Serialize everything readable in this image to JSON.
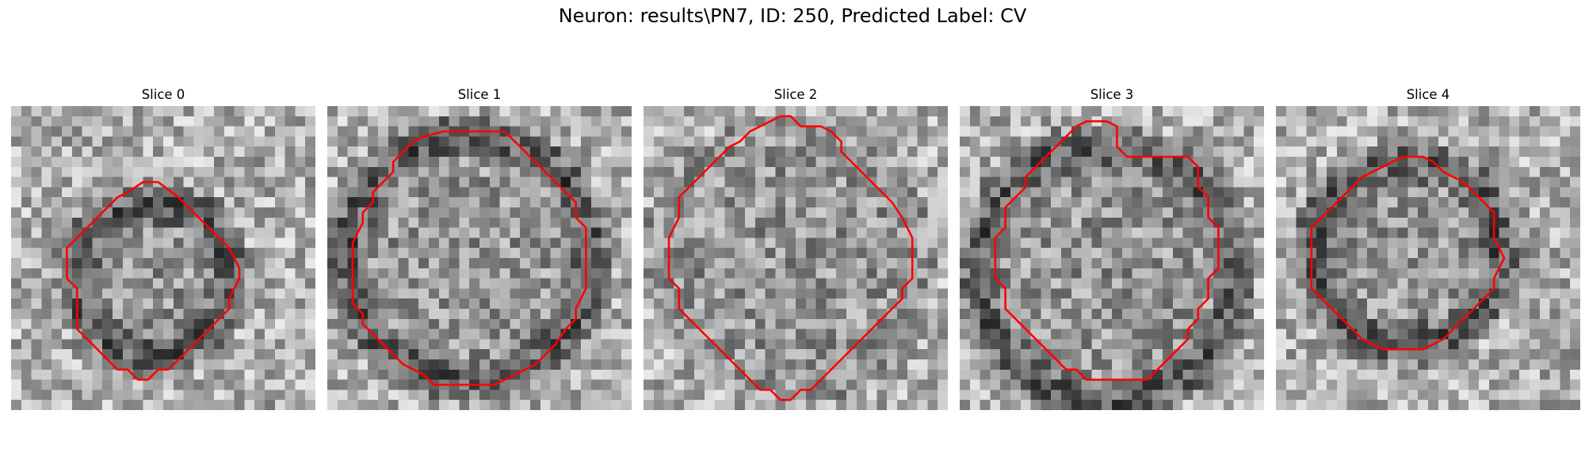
{
  "figure": {
    "title": "Neuron: results\\PN7, ID: 250, Predicted Label: CV"
  },
  "colors": {
    "contour": "#ff0000",
    "background": "#ffffff"
  },
  "panels": [
    {
      "title": "Slice 0",
      "contour": [
        [
          13,
          7.5
        ],
        [
          14.5,
          7.5
        ],
        [
          16.5,
          9
        ],
        [
          17.5,
          10
        ],
        [
          18.5,
          11
        ],
        [
          19.5,
          12
        ],
        [
          20.5,
          13
        ],
        [
          21.5,
          14
        ],
        [
          22,
          15
        ],
        [
          22.5,
          16
        ],
        [
          22.5,
          17
        ],
        [
          22,
          18
        ],
        [
          21.5,
          19
        ],
        [
          21.5,
          20
        ],
        [
          20.5,
          21
        ],
        [
          19.5,
          22
        ],
        [
          18.5,
          23
        ],
        [
          17.5,
          24
        ],
        [
          16.5,
          25
        ],
        [
          15.5,
          26
        ],
        [
          14.5,
          26
        ],
        [
          13.5,
          27
        ],
        [
          12.5,
          27
        ],
        [
          11.5,
          26
        ],
        [
          10.5,
          26
        ],
        [
          9.5,
          25
        ],
        [
          8.5,
          24
        ],
        [
          7.5,
          23
        ],
        [
          6.5,
          22
        ],
        [
          6.5,
          20
        ],
        [
          6.5,
          18
        ],
        [
          5.5,
          17
        ],
        [
          5.5,
          16
        ],
        [
          5.5,
          14
        ],
        [
          6.5,
          13
        ],
        [
          7.5,
          12
        ],
        [
          8.5,
          11
        ],
        [
          9.5,
          10
        ],
        [
          10.5,
          9
        ],
        [
          11.5,
          8.5
        ]
      ],
      "center": [
        14,
        17
      ],
      "radius": 7.5,
      "dark_ring": true
    },
    {
      "title": "Slice 1",
      "contour": [
        [
          9.5,
          3
        ],
        [
          11.5,
          2.5
        ],
        [
          13.5,
          2.5
        ],
        [
          15.5,
          2.5
        ],
        [
          17.5,
          2.5
        ],
        [
          18.5,
          3.5
        ],
        [
          19.5,
          4.5
        ],
        [
          20.5,
          5.5
        ],
        [
          21.5,
          6.5
        ],
        [
          22.5,
          7.5
        ],
        [
          23.5,
          8.5
        ],
        [
          24.5,
          9.5
        ],
        [
          24.5,
          11
        ],
        [
          25.5,
          12
        ],
        [
          25.5,
          14
        ],
        [
          25.5,
          16
        ],
        [
          25.5,
          18
        ],
        [
          24.5,
          20
        ],
        [
          24.5,
          21
        ],
        [
          23.5,
          22
        ],
        [
          22.5,
          23.5
        ],
        [
          21.5,
          24.5
        ],
        [
          20.5,
          25.5
        ],
        [
          18.5,
          26.5
        ],
        [
          16.5,
          27.5
        ],
        [
          14.5,
          27.5
        ],
        [
          12.5,
          27.5
        ],
        [
          10.5,
          27.5
        ],
        [
          9.5,
          26.5
        ],
        [
          7.5,
          25.5
        ],
        [
          6.5,
          24.5
        ],
        [
          5.5,
          23.5
        ],
        [
          4.5,
          22.5
        ],
        [
          3.5,
          21.5
        ],
        [
          3.5,
          20.5
        ],
        [
          2.5,
          19.5
        ],
        [
          2.5,
          17.5
        ],
        [
          2.5,
          15.5
        ],
        [
          2.5,
          13.5
        ],
        [
          3.5,
          11.5
        ],
        [
          3.5,
          10.5
        ],
        [
          4.5,
          9.5
        ],
        [
          4.5,
          8.5
        ],
        [
          5.5,
          7.5
        ],
        [
          6.5,
          6.5
        ],
        [
          6.5,
          5.5
        ],
        [
          7.5,
          4.5
        ],
        [
          8.5,
          3.5
        ]
      ],
      "center": [
        14,
        15
      ],
      "radius": 12,
      "dark_ring": true
    },
    {
      "title": "Slice 2",
      "contour": [
        [
          12.5,
          1.5
        ],
        [
          13.5,
          1
        ],
        [
          14.5,
          1
        ],
        [
          15.5,
          2
        ],
        [
          17.5,
          2
        ],
        [
          18.5,
          2.5
        ],
        [
          19.5,
          3.5
        ],
        [
          19.5,
          4.5
        ],
        [
          20.5,
          5.5
        ],
        [
          21.5,
          6.5
        ],
        [
          22.5,
          7.5
        ],
        [
          23.5,
          8.5
        ],
        [
          24.5,
          9.5
        ],
        [
          25.5,
          11
        ],
        [
          26.5,
          13
        ],
        [
          26.5,
          15
        ],
        [
          26.5,
          17
        ],
        [
          25.5,
          18
        ],
        [
          25.5,
          19
        ],
        [
          24.5,
          20
        ],
        [
          23.5,
          21
        ],
        [
          22.5,
          22
        ],
        [
          21.5,
          23
        ],
        [
          20.5,
          24
        ],
        [
          19.5,
          25
        ],
        [
          18.5,
          26
        ],
        [
          17.5,
          27
        ],
        [
          16.5,
          28
        ],
        [
          15.5,
          28
        ],
        [
          14.5,
          29
        ],
        [
          13.5,
          29
        ],
        [
          12.5,
          28
        ],
        [
          11.5,
          28
        ],
        [
          10.5,
          27
        ],
        [
          9.5,
          26
        ],
        [
          8.5,
          25
        ],
        [
          7.5,
          24
        ],
        [
          6.5,
          23
        ],
        [
          5.5,
          22
        ],
        [
          4.5,
          21
        ],
        [
          3.5,
          20
        ],
        [
          3.5,
          18
        ],
        [
          2.5,
          17
        ],
        [
          2.5,
          15
        ],
        [
          2.5,
          13
        ],
        [
          3.5,
          11
        ],
        [
          3.5,
          9
        ],
        [
          4.5,
          8
        ],
        [
          5.5,
          7
        ],
        [
          6.5,
          6
        ],
        [
          7.5,
          5
        ],
        [
          8.5,
          4
        ],
        [
          9.5,
          3.5
        ],
        [
          10.5,
          2.5
        ],
        [
          11.5,
          2
        ]
      ],
      "center": [
        14.5,
        15
      ],
      "radius": 12,
      "dark_ring": false
    },
    {
      "title": "Slice 3",
      "contour": [
        [
          11.5,
          2
        ],
        [
          12.5,
          1.5
        ],
        [
          14.5,
          1.5
        ],
        [
          15.5,
          2
        ],
        [
          15.5,
          4
        ],
        [
          16.5,
          5
        ],
        [
          18.5,
          5
        ],
        [
          20.5,
          5
        ],
        [
          22.5,
          5
        ],
        [
          23.5,
          6
        ],
        [
          23.5,
          8
        ],
        [
          24.5,
          9
        ],
        [
          24.5,
          11
        ],
        [
          25.5,
          12
        ],
        [
          25.5,
          14
        ],
        [
          25.5,
          16
        ],
        [
          24.5,
          17
        ],
        [
          24.5,
          19
        ],
        [
          23.5,
          20
        ],
        [
          23.5,
          21
        ],
        [
          22.5,
          22
        ],
        [
          22.5,
          23
        ],
        [
          21.5,
          24
        ],
        [
          20.5,
          25
        ],
        [
          19.5,
          26
        ],
        [
          18.5,
          27
        ],
        [
          16.5,
          27
        ],
        [
          14.5,
          27
        ],
        [
          12.5,
          27
        ],
        [
          11.5,
          26
        ],
        [
          10.5,
          26
        ],
        [
          9.5,
          25
        ],
        [
          8.5,
          24
        ],
        [
          7.5,
          23
        ],
        [
          6.5,
          22
        ],
        [
          5.5,
          21
        ],
        [
          4.5,
          20
        ],
        [
          4.5,
          18
        ],
        [
          3.5,
          17
        ],
        [
          3.5,
          15
        ],
        [
          3.5,
          13
        ],
        [
          4.5,
          12
        ],
        [
          4.5,
          10
        ],
        [
          5.5,
          9
        ],
        [
          6.5,
          8
        ],
        [
          6.5,
          7
        ],
        [
          7.5,
          6
        ],
        [
          8.5,
          5
        ],
        [
          9.5,
          4
        ],
        [
          10.5,
          3
        ]
      ],
      "center": [
        14.5,
        16.5
      ],
      "radius": 12.5,
      "dark_ring": true
    },
    {
      "title": "Slice 4",
      "contour": [
        [
          11.5,
          5.5
        ],
        [
          12.5,
          5
        ],
        [
          14.5,
          5
        ],
        [
          15.5,
          5.5
        ],
        [
          16.5,
          6.5
        ],
        [
          17.5,
          7
        ],
        [
          18.5,
          7.5
        ],
        [
          19.5,
          8.5
        ],
        [
          20.5,
          9.5
        ],
        [
          21.5,
          10.5
        ],
        [
          21.5,
          12
        ],
        [
          21.5,
          13
        ],
        [
          22,
          14
        ],
        [
          22.5,
          15
        ],
        [
          22,
          16
        ],
        [
          21.5,
          17
        ],
        [
          21.5,
          18
        ],
        [
          20.5,
          19
        ],
        [
          19.5,
          20
        ],
        [
          18.5,
          21
        ],
        [
          17.5,
          22
        ],
        [
          16.5,
          23
        ],
        [
          15.5,
          23.5
        ],
        [
          14.5,
          24
        ],
        [
          12.5,
          24
        ],
        [
          10.5,
          24
        ],
        [
          9.5,
          23.5
        ],
        [
          8.5,
          23
        ],
        [
          7.5,
          22
        ],
        [
          6.5,
          21
        ],
        [
          5.5,
          20
        ],
        [
          4.5,
          19
        ],
        [
          3.5,
          18
        ],
        [
          3.5,
          16
        ],
        [
          3.5,
          14
        ],
        [
          3.5,
          12
        ],
        [
          4.5,
          11
        ],
        [
          5.5,
          10
        ],
        [
          6.5,
          9
        ],
        [
          7.5,
          8
        ],
        [
          8.5,
          7
        ],
        [
          9.5,
          6.5
        ],
        [
          10.5,
          6
        ]
      ],
      "center": [
        13,
        14.5
      ],
      "radius": 9,
      "dark_ring": true
    }
  ]
}
